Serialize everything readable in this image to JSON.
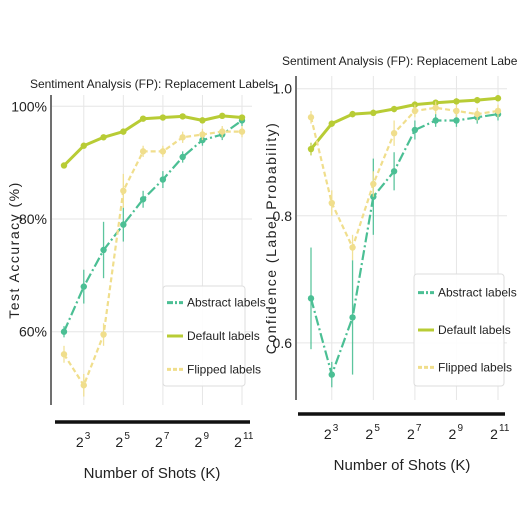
{
  "colors": {
    "abstract": "#4bbf94",
    "default": "#b8cc35",
    "flipped": "#f0de8c",
    "grid": "#e6e6e6",
    "axis": "#111111"
  },
  "chart_data": [
    {
      "type": "line",
      "title": "Sentiment Analysis (FP): Replacement Labels",
      "xlabel": "Number of Shots (K)",
      "ylabel": "Test Accuracy (%)",
      "x_scale": "log2",
      "x": [
        4,
        8,
        16,
        32,
        64,
        128,
        256,
        512,
        1024,
        2048
      ],
      "xticks": [
        8,
        32,
        128,
        512,
        2048
      ],
      "xtick_labels": [
        "2",
        "2",
        "2",
        "2",
        "2"
      ],
      "xtick_exponents": [
        "3",
        "5",
        "7",
        "9",
        "11"
      ],
      "ylim": [
        47,
        102
      ],
      "yticks": [
        60,
        80,
        100
      ],
      "ytick_labels": [
        "60%",
        "80%",
        "100%"
      ],
      "grid": true,
      "legend_position": "lower-right",
      "series": [
        {
          "name": "Abstract labels",
          "key": "abstract",
          "style": "dashdot",
          "values": [
            60,
            68,
            74.5,
            79,
            83.5,
            87,
            91,
            94,
            95,
            97.5
          ],
          "err": [
            1,
            3,
            5,
            3,
            1.5,
            1.5,
            1,
            1,
            1,
            1
          ]
        },
        {
          "name": "Default labels",
          "key": "default",
          "style": "solid",
          "values": [
            89.5,
            93,
            94.5,
            95.5,
            97.8,
            98,
            98.2,
            97.5,
            98.3,
            98
          ],
          "err": [
            0.5,
            0.5,
            0.5,
            0.5,
            0.4,
            0.4,
            0.4,
            0.4,
            0.4,
            0.4
          ]
        },
        {
          "name": "Flipped labels",
          "key": "flipped",
          "style": "dashed",
          "values": [
            56,
            50.5,
            59.5,
            85,
            92,
            92,
            94.5,
            95,
            95.5,
            95.5
          ],
          "err": [
            1.5,
            2,
            2,
            3,
            1,
            1,
            1,
            1,
            1,
            1
          ]
        }
      ]
    },
    {
      "type": "line",
      "title": "Sentiment Analysis (FP): Replacement Labels",
      "xlabel": "Number of Shots (K)",
      "ylabel": "Confidence (Label Probability)",
      "x_scale": "log2",
      "x": [
        4,
        8,
        16,
        32,
        64,
        128,
        256,
        512,
        1024,
        2048
      ],
      "xticks": [
        8,
        32,
        128,
        512,
        2048
      ],
      "xtick_labels": [
        "2",
        "2",
        "2",
        "2",
        "2"
      ],
      "xtick_exponents": [
        "3",
        "5",
        "7",
        "9",
        "11"
      ],
      "ylim": [
        0.51,
        1.02
      ],
      "yticks": [
        0.6,
        0.8,
        1.0
      ],
      "ytick_labels": [
        "0.6",
        "0.8",
        "1.0"
      ],
      "grid": true,
      "legend_position": "lower-right",
      "series": [
        {
          "name": "Abstract labels",
          "key": "abstract",
          "style": "dashdot",
          "values": [
            0.67,
            0.55,
            0.64,
            0.83,
            0.87,
            0.935,
            0.95,
            0.95,
            0.955,
            0.96
          ],
          "err": [
            0.08,
            0.02,
            0.09,
            0.06,
            0.03,
            0.015,
            0.01,
            0.01,
            0.01,
            0.01
          ]
        },
        {
          "name": "Default labels",
          "key": "default",
          "style": "solid",
          "values": [
            0.905,
            0.945,
            0.96,
            0.962,
            0.968,
            0.975,
            0.978,
            0.98,
            0.982,
            0.985
          ],
          "err": [
            0.01,
            0.005,
            0.005,
            0.005,
            0.005,
            0.005,
            0.005,
            0.005,
            0.005,
            0.005
          ]
        },
        {
          "name": "Flipped labels",
          "key": "flipped",
          "style": "dashed",
          "values": [
            0.955,
            0.82,
            0.75,
            0.85,
            0.93,
            0.965,
            0.97,
            0.965,
            0.96,
            0.965
          ],
          "err": [
            0.01,
            0.02,
            0.02,
            0.02,
            0.02,
            0.01,
            0.01,
            0.01,
            0.01,
            0.01
          ]
        }
      ]
    }
  ]
}
